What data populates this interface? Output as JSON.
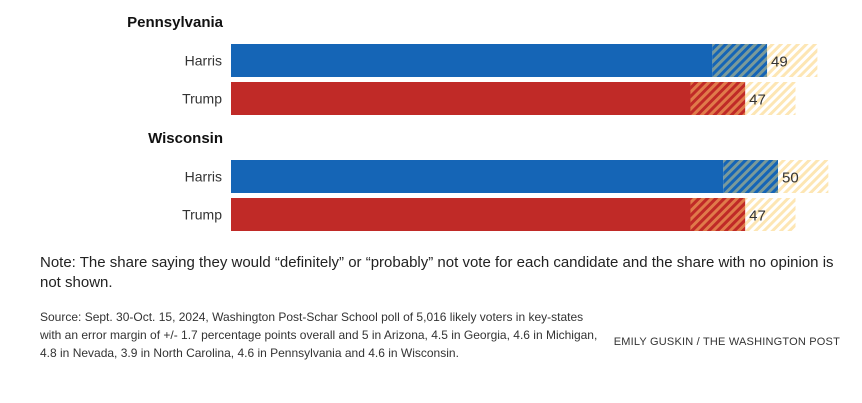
{
  "chart_data": {
    "type": "bar",
    "orientation": "horizontal",
    "stacked": true,
    "groups": [
      {
        "title": "Pennsylvania",
        "bars": [
          {
            "label": "Harris",
            "total": 49,
            "definitely": 44,
            "probably": 5,
            "color": "#1565b6"
          },
          {
            "label": "Trump",
            "total": 47,
            "definitely": 42,
            "probably": 5,
            "color": "#c02a27"
          }
        ]
      },
      {
        "title": "Wisconsin",
        "bars": [
          {
            "label": "Harris",
            "total": 50,
            "definitely": 45,
            "probably": 5,
            "color": "#1565b6"
          },
          {
            "label": "Trump",
            "total": 47,
            "definitely": 42,
            "probably": 5,
            "color": "#c02a27"
          }
        ]
      }
    ],
    "margin_of_error_band": 4.6,
    "margin_color": "#fde6b4",
    "xlim": [
      0,
      55
    ],
    "grid": false
  },
  "note": "Note: The share saying they would “definitely” or “probably” not vote for each candidate and the share with no opinion is not shown.",
  "source": "Source: Sept. 30-Oct. 15, 2024, Washington Post-Schar School poll of 5,016 likely voters in key-states with an error margin of +/- 1.7 percentage points overall and 5 in Arizona, 4.5 in Georgia, 4.6 in Michigan, 4.8 in Nevada, 3.9 in North Carolina, 4.6 in Pennsylvania and 4.6 in Wisconsin.",
  "credit": "EMILY GUSKIN / THE WASHINGTON POST"
}
